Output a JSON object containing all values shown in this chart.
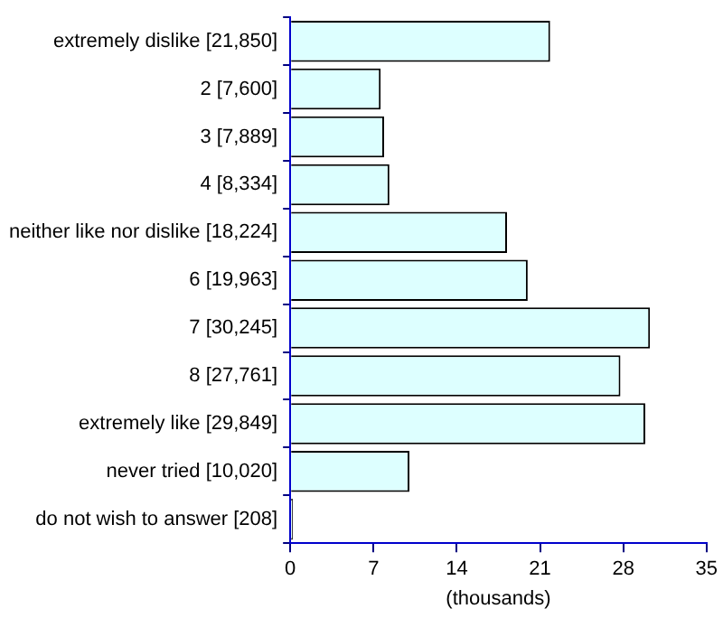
{
  "chart_data": {
    "type": "bar",
    "orientation": "horizontal",
    "xlabel": "(thousands)",
    "categories": [
      "extremely dislike [21,850]",
      "2 [7,600]",
      "3 [7,889]",
      "4 [8,334]",
      "neither like nor dislike [18,224]",
      "6 [19,963]",
      "7 [30,245]",
      "8 [27,761]",
      "extremely like [29,849]",
      "never tried [10,020]",
      "do not wish to answer [208]"
    ],
    "values": [
      21.85,
      7.6,
      7.889,
      8.334,
      18.224,
      19.963,
      30.245,
      27.761,
      29.849,
      10.02,
      0.208
    ],
    "color": "#ddffff",
    "xlim": [
      0,
      35
    ],
    "xticks": [
      0,
      7,
      14,
      21,
      28,
      35
    ],
    "grid": false,
    "legend": false
  }
}
